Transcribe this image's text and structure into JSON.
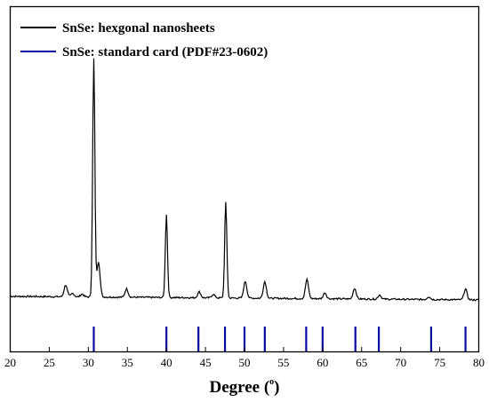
{
  "chart_data": {
    "type": "line",
    "xlabel_main": "Degree (",
    "xlabel_sup": "o",
    "xlabel_close": ")",
    "ylabel": "",
    "xlim": [
      20,
      80
    ],
    "x_ticks": [
      "20",
      "25",
      "30",
      "35",
      "40",
      "45",
      "50",
      "55",
      "60",
      "65",
      "70",
      "75",
      "80"
    ],
    "grid": false,
    "legend_placement": "top-left",
    "colors": {
      "pattern": "#000000",
      "reference": "#0a0aa0"
    },
    "series": [
      {
        "name": "SnSe: hexgonal nanosheets",
        "style": "line",
        "baseline": 0.06,
        "peaks": [
          {
            "x": 27.1,
            "y": 0.05
          },
          {
            "x": 28.0,
            "y": 0.015
          },
          {
            "x": 29.2,
            "y": 0.012
          },
          {
            "x": 30.7,
            "y": 1.0
          },
          {
            "x": 31.3,
            "y": 0.15
          },
          {
            "x": 34.9,
            "y": 0.035
          },
          {
            "x": 40.0,
            "y": 0.35
          },
          {
            "x": 44.2,
            "y": 0.025
          },
          {
            "x": 46.0,
            "y": 0.015
          },
          {
            "x": 47.6,
            "y": 0.4
          },
          {
            "x": 50.1,
            "y": 0.07
          },
          {
            "x": 52.6,
            "y": 0.07
          },
          {
            "x": 58.0,
            "y": 0.08
          },
          {
            "x": 60.3,
            "y": 0.025
          },
          {
            "x": 64.1,
            "y": 0.045
          },
          {
            "x": 67.3,
            "y": 0.018
          },
          {
            "x": 73.6,
            "y": 0.012
          },
          {
            "x": 78.3,
            "y": 0.045
          }
        ]
      },
      {
        "name": "SnSe: standard card (PDF#23-0602)",
        "style": "sticks",
        "x": [
          30.7,
          40.0,
          44.1,
          47.5,
          50.0,
          52.6,
          57.9,
          60.0,
          64.2,
          67.2,
          73.9,
          78.3
        ]
      }
    ]
  }
}
